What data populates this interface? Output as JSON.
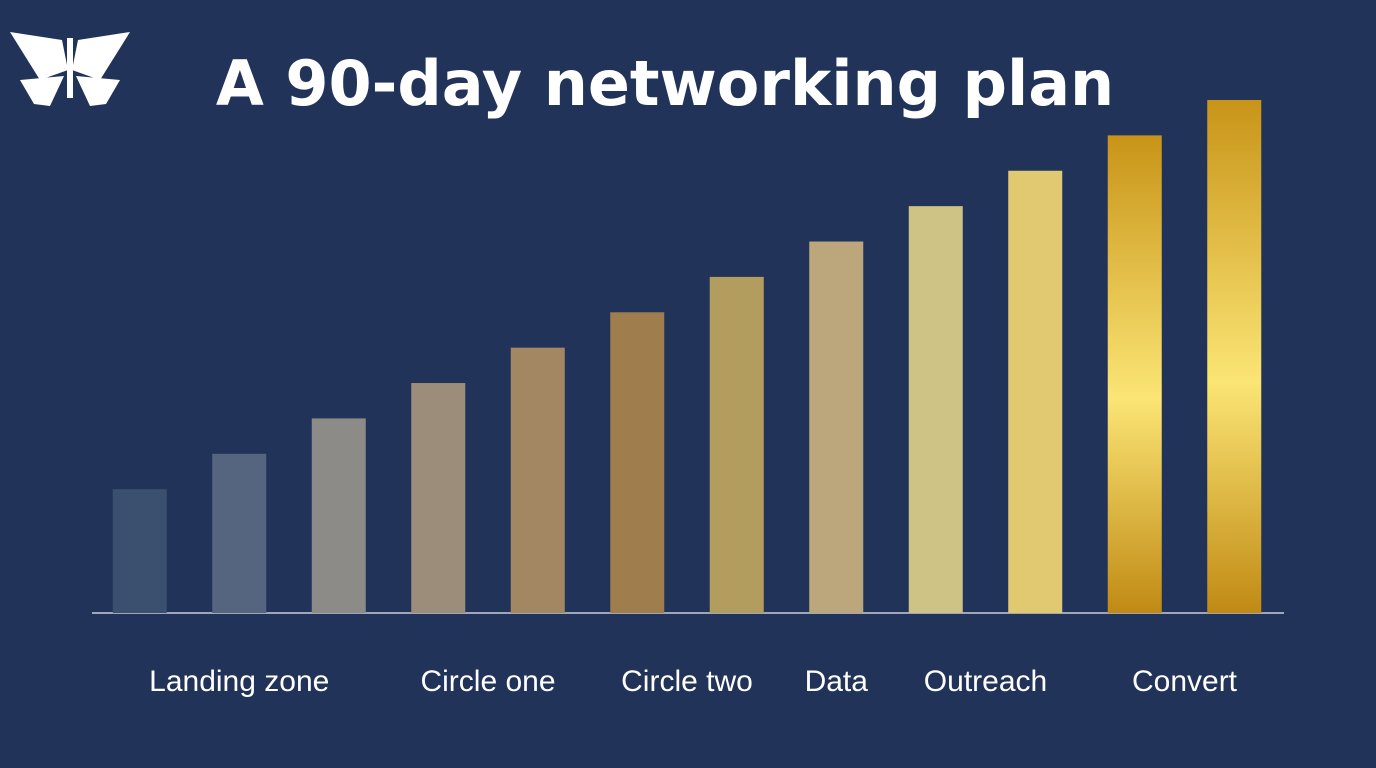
{
  "chart_data": {
    "type": "bar",
    "title": "A 90-day networking plan",
    "categories": [
      null,
      "Landing zone",
      null,
      "Circle one",
      null,
      "Circle two",
      null,
      "Data",
      "Outreach",
      null,
      "Convert",
      null
    ],
    "values": [
      3.5,
      4.5,
      5.5,
      6.5,
      7.5,
      8.5,
      9.5,
      10.5,
      11.5,
      12.5,
      13.5,
      14.5
    ],
    "colors": [
      "#3b506f",
      "#56657f",
      "#8c8b88",
      "#9b8d79",
      "#a38762",
      "#a07d4c",
      "#b39d5e",
      "#bba77b",
      "#cfc285",
      "#e1c972",
      "#d9ae35",
      "#d9ae35"
    ],
    "ylim": [
      0,
      14.5
    ]
  }
}
